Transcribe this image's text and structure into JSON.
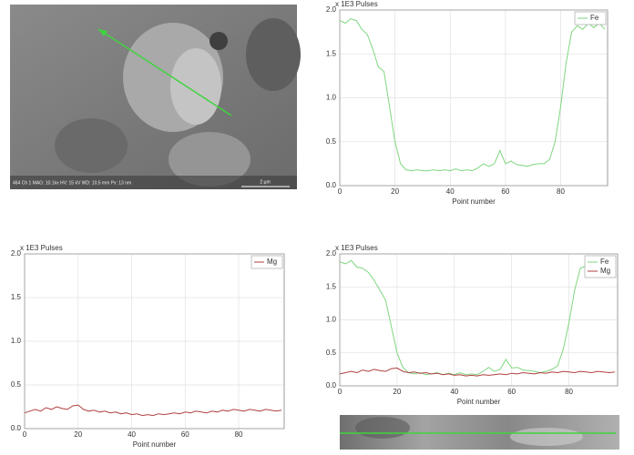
{
  "sem_image": {
    "info": "464 Ch 1  MAG: 10.1kx  HV: 15 kV  WD: 10.5 mm  Px: 13 nm",
    "scale_bar": "2 µm"
  },
  "chart_data": [
    {
      "type": "line",
      "title": "x 1E3 Pulses",
      "x_label": "Point number",
      "legend": "upper right",
      "grid": true,
      "xlim": [
        0,
        97
      ],
      "xticks": [
        0,
        20,
        40,
        60,
        80
      ],
      "ylim": [
        0,
        2
      ],
      "yticks": [
        {
          "value": 0,
          "label": "0.0"
        },
        0.5,
        {
          "value": 1,
          "label": "1.0"
        },
        1.5,
        {
          "value": 2,
          "label": "2.0"
        }
      ],
      "x": [
        0,
        2,
        4,
        6,
        8,
        10,
        12,
        14,
        16,
        18,
        20,
        22,
        24,
        26,
        28,
        30,
        32,
        34,
        36,
        38,
        40,
        42,
        44,
        46,
        48,
        50,
        52,
        54,
        56,
        58,
        60,
        62,
        64,
        66,
        68,
        70,
        72,
        74,
        76,
        78,
        80,
        82,
        84,
        86,
        88,
        90,
        92,
        94,
        96
      ],
      "series": [
        {
          "name": "Fe",
          "color": "#7fd67f",
          "values": [
            1.88,
            1.85,
            1.9,
            1.88,
            1.78,
            1.72,
            1.55,
            1.35,
            1.3,
            0.9,
            0.5,
            0.25,
            0.18,
            0.17,
            0.18,
            0.17,
            0.17,
            0.18,
            0.17,
            0.18,
            0.17,
            0.19,
            0.17,
            0.18,
            0.17,
            0.2,
            0.25,
            0.22,
            0.25,
            0.4,
            0.25,
            0.28,
            0.24,
            0.23,
            0.22,
            0.24,
            0.25,
            0.25,
            0.3,
            0.5,
            0.9,
            1.4,
            1.75,
            1.82,
            1.78,
            1.85,
            1.8,
            1.85,
            1.78
          ]
        }
      ]
    },
    {
      "type": "line",
      "title": "x 1E3 Pulses",
      "x_label": "Point number",
      "legend": "upper right",
      "grid": true,
      "xlim": [
        0,
        97
      ],
      "xticks": [
        0,
        20,
        40,
        60,
        80
      ],
      "ylim": [
        0,
        2
      ],
      "yticks": [
        {
          "value": 0,
          "label": "0.0"
        },
        0.5,
        {
          "value": 1,
          "label": "1.0"
        },
        1.5,
        {
          "value": 2,
          "label": "2.0"
        }
      ],
      "x": [
        0,
        2,
        4,
        6,
        8,
        10,
        12,
        14,
        16,
        18,
        20,
        22,
        24,
        26,
        28,
        30,
        32,
        34,
        36,
        38,
        40,
        42,
        44,
        46,
        48,
        50,
        52,
        54,
        56,
        58,
        60,
        62,
        64,
        66,
        68,
        70,
        72,
        74,
        76,
        78,
        80,
        82,
        84,
        86,
        88,
        90,
        92,
        94,
        96
      ],
      "series": [
        {
          "name": "Mg",
          "color": "#b04040",
          "values": [
            0.18,
            0.2,
            0.22,
            0.2,
            0.24,
            0.22,
            0.25,
            0.23,
            0.22,
            0.26,
            0.27,
            0.22,
            0.2,
            0.21,
            0.19,
            0.2,
            0.18,
            0.19,
            0.17,
            0.18,
            0.16,
            0.17,
            0.15,
            0.16,
            0.15,
            0.17,
            0.16,
            0.17,
            0.18,
            0.17,
            0.19,
            0.18,
            0.2,
            0.19,
            0.18,
            0.2,
            0.19,
            0.21,
            0.2,
            0.22,
            0.21,
            0.2,
            0.22,
            0.21,
            0.2,
            0.22,
            0.21,
            0.2,
            0.21
          ]
        }
      ]
    },
    {
      "type": "line",
      "title": "x 1E3 Pulses",
      "x_label": "Point number",
      "legend": "upper right",
      "grid": true,
      "xlim": [
        0,
        97
      ],
      "xticks": [
        0,
        20,
        40,
        60,
        80
      ],
      "ylim": [
        0,
        2
      ],
      "yticks": [
        {
          "value": 0,
          "label": "0.0"
        },
        0.5,
        {
          "value": 1,
          "label": "1.0"
        },
        1.5,
        {
          "value": 2,
          "label": "2.0"
        }
      ],
      "x": [
        0,
        2,
        4,
        6,
        8,
        10,
        12,
        14,
        16,
        18,
        20,
        22,
        24,
        26,
        28,
        30,
        32,
        34,
        36,
        38,
        40,
        42,
        44,
        46,
        48,
        50,
        52,
        54,
        56,
        58,
        60,
        62,
        64,
        66,
        68,
        70,
        72,
        74,
        76,
        78,
        80,
        82,
        84,
        86,
        88,
        90,
        92,
        94,
        96
      ],
      "series": [
        {
          "name": "Fe",
          "color": "#7fd67f",
          "values": [
            1.88,
            1.85,
            1.9,
            1.8,
            1.78,
            1.72,
            1.6,
            1.45,
            1.3,
            0.9,
            0.5,
            0.28,
            0.2,
            0.18,
            0.2,
            0.17,
            0.18,
            0.2,
            0.17,
            0.19,
            0.17,
            0.2,
            0.17,
            0.18,
            0.17,
            0.22,
            0.28,
            0.22,
            0.25,
            0.4,
            0.27,
            0.28,
            0.24,
            0.23,
            0.22,
            0.2,
            0.22,
            0.25,
            0.3,
            0.55,
            0.95,
            1.45,
            1.78,
            1.82,
            1.7,
            1.75,
            1.8,
            1.82,
            1.78
          ]
        },
        {
          "name": "Mg",
          "color": "#b04040",
          "values": [
            0.18,
            0.2,
            0.22,
            0.2,
            0.24,
            0.22,
            0.25,
            0.23,
            0.22,
            0.26,
            0.27,
            0.22,
            0.2,
            0.21,
            0.19,
            0.2,
            0.18,
            0.19,
            0.17,
            0.18,
            0.16,
            0.17,
            0.15,
            0.16,
            0.15,
            0.17,
            0.16,
            0.17,
            0.18,
            0.17,
            0.19,
            0.18,
            0.2,
            0.19,
            0.18,
            0.2,
            0.19,
            0.21,
            0.2,
            0.22,
            0.21,
            0.2,
            0.22,
            0.21,
            0.2,
            0.22,
            0.21,
            0.2,
            0.21
          ]
        }
      ]
    }
  ]
}
